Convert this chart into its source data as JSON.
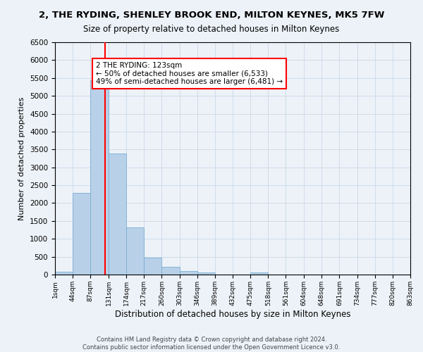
{
  "title": "2, THE RYDING, SHENLEY BROOK END, MILTON KEYNES, MK5 7FW",
  "subtitle": "Size of property relative to detached houses in Milton Keynes",
  "xlabel": "Distribution of detached houses by size in Milton Keynes",
  "ylabel": "Number of detached properties",
  "bar_color": "#b8d0e8",
  "bar_edge_color": "#7aafd4",
  "grid_color": "#c8d8e8",
  "background_color": "#edf2f8",
  "annotation_text": "2 THE RYDING: 123sqm\n← 50% of detached houses are smaller (6,533)\n49% of semi-detached houses are larger (6,481) →",
  "annotation_box_color": "white",
  "annotation_box_edge": "red",
  "vline_x": 123,
  "vline_color": "red",
  "footer_text": "Contains HM Land Registry data © Crown copyright and database right 2024.\nContains public sector information licensed under the Open Government Licence v3.0.",
  "bin_edges": [
    1,
    44,
    87,
    131,
    174,
    217,
    260,
    303,
    346,
    389,
    432,
    475,
    518,
    561,
    604,
    648,
    691,
    734,
    777,
    820,
    863
  ],
  "bin_heights": [
    75,
    2280,
    5430,
    3380,
    1310,
    480,
    210,
    100,
    55,
    0,
    0,
    55,
    0,
    0,
    0,
    0,
    0,
    0,
    0,
    0
  ],
  "ylim": [
    0,
    6500
  ],
  "xlim": [
    1,
    863
  ],
  "yticks": [
    0,
    500,
    1000,
    1500,
    2000,
    2500,
    3000,
    3500,
    4000,
    4500,
    5000,
    5500,
    6000,
    6500
  ],
  "xtick_labels": [
    "1sqm",
    "44sqm",
    "87sqm",
    "131sqm",
    "174sqm",
    "217sqm",
    "260sqm",
    "303sqm",
    "346sqm",
    "389sqm",
    "432sqm",
    "475sqm",
    "518sqm",
    "561sqm",
    "604sqm",
    "648sqm",
    "691sqm",
    "734sqm",
    "777sqm",
    "820sqm",
    "863sqm"
  ]
}
